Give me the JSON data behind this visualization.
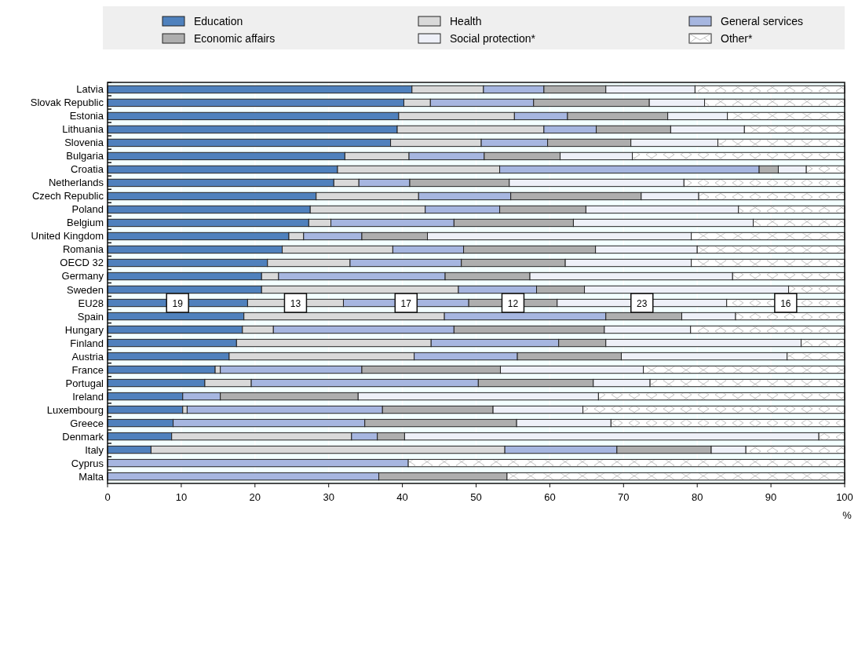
{
  "chart_data": {
    "type": "bar",
    "orientation": "horizontal",
    "stacked": true,
    "xlabel": "%",
    "legend": "top",
    "grid": "x",
    "categories": [
      "Latvia",
      "Slovak Republic",
      "Estonia",
      "Lithuania",
      "Slovenia",
      "Bulgaria",
      "Croatia",
      "Netherlands",
      "Czech Republic",
      "Poland",
      "Belgium",
      "United Kingdom",
      "Romania",
      "OECD 32",
      "Germany",
      "Sweden",
      "EU28",
      "Spain",
      "Hungary",
      "Finland",
      "Austria",
      "France",
      "Portugal",
      "Ireland",
      "Luxembourg",
      "Greece",
      "Denmark",
      "Italy",
      "Cyprus",
      "Malta"
    ],
    "xlim": [
      0,
      100
    ],
    "xticks": [
      0,
      10,
      20,
      30,
      40,
      50,
      60,
      70,
      80,
      90,
      100
    ],
    "series": [
      {
        "name": "Education",
        "color": "#4f81bd",
        "values": [
          41.3,
          40.2,
          39.5,
          39.3,
          38.4,
          32.2,
          31.2,
          30.7,
          28.3,
          27.5,
          27.3,
          24.6,
          23.7,
          21.7,
          20.9,
          20.9,
          19,
          18.5,
          18.3,
          17.5,
          16.5,
          14.6,
          13.2,
          10.2,
          10.2,
          8.9,
          8.7,
          5.9,
          0,
          0
        ],
        "value_labels": [
          null,
          null,
          null,
          null,
          null,
          null,
          null,
          null,
          null,
          null,
          null,
          null,
          null,
          null,
          null,
          null,
          "19",
          null,
          null,
          null,
          null,
          null,
          null,
          null,
          null,
          null,
          null,
          null,
          null,
          null
        ]
      },
      {
        "name": "Health",
        "color": "#d9d9d9",
        "values": [
          9.7,
          3.6,
          15.7,
          19.9,
          12.3,
          8.7,
          22.0,
          3.4,
          13.9,
          15.6,
          3.0,
          2.0,
          15.0,
          11.2,
          2.3,
          26.7,
          13,
          27.2,
          4.2,
          26.4,
          25.1,
          0.7,
          6.3,
          0,
          0.6,
          0,
          24.4,
          48.0,
          0,
          0
        ],
        "value_labels": [
          null,
          null,
          null,
          null,
          null,
          null,
          null,
          null,
          null,
          null,
          null,
          null,
          null,
          null,
          null,
          null,
          "13",
          null,
          null,
          null,
          null,
          null,
          null,
          null,
          null,
          null,
          null,
          null,
          null,
          null
        ]
      },
      {
        "name": "General services",
        "color": "#a6b6e0",
        "values": [
          8.2,
          14.0,
          7.2,
          7.1,
          9.0,
          10.2,
          35.2,
          6.9,
          12.5,
          10.1,
          16.7,
          7.9,
          9.6,
          15.1,
          22.6,
          10.6,
          17,
          21.9,
          24.5,
          17.3,
          14.0,
          19.2,
          30.8,
          5.1,
          26.5,
          26.0,
          3.5,
          15.2,
          40.8,
          36.8
        ],
        "value_labels": [
          null,
          null,
          null,
          null,
          null,
          null,
          null,
          null,
          null,
          null,
          null,
          null,
          null,
          null,
          null,
          null,
          "17",
          null,
          null,
          null,
          null,
          null,
          null,
          null,
          null,
          null,
          null,
          null,
          null,
          null
        ]
      },
      {
        "name": "Economic affairs",
        "color": "#aeaeae",
        "values": [
          8.4,
          15.7,
          13.6,
          10.1,
          11.3,
          10.3,
          2.6,
          13.5,
          17.7,
          11.7,
          16.2,
          8.9,
          17.9,
          14.1,
          11.5,
          6.5,
          12,
          10.3,
          20.4,
          6.4,
          14.1,
          18.8,
          15.6,
          18.7,
          15.0,
          20.6,
          3.7,
          12.8,
          0,
          17.4
        ],
        "value_labels": [
          null,
          null,
          null,
          null,
          null,
          null,
          null,
          null,
          null,
          null,
          null,
          null,
          null,
          null,
          null,
          null,
          "12",
          null,
          null,
          null,
          null,
          null,
          null,
          null,
          null,
          null,
          null,
          null,
          null,
          null
        ]
      },
      {
        "name": "Social protection*",
        "color": "#eef0f8",
        "values": [
          12.1,
          7.5,
          8.1,
          10.0,
          11.8,
          9.8,
          3.8,
          23.7,
          7.8,
          20.7,
          24.4,
          35.8,
          13.8,
          17.1,
          27.5,
          27.7,
          23,
          7.3,
          11.7,
          26.5,
          22.5,
          19.4,
          7.7,
          32.6,
          12.2,
          12.8,
          56.2,
          4.7,
          0,
          0
        ],
        "value_labels": [
          null,
          null,
          null,
          null,
          null,
          null,
          null,
          null,
          null,
          null,
          null,
          null,
          null,
          null,
          null,
          null,
          "23",
          null,
          null,
          null,
          null,
          null,
          null,
          null,
          null,
          null,
          null,
          null,
          null,
          null
        ]
      },
      {
        "name": "Other*",
        "color": "#ffffff",
        "values": [
          20.3,
          19.0,
          15.9,
          13.6,
          17.2,
          28.8,
          5.2,
          21.8,
          19.8,
          14.4,
          12.4,
          20.8,
          20.0,
          20.8,
          15.2,
          7.6,
          16,
          14.8,
          20.9,
          5.9,
          7.8,
          27.3,
          26.4,
          33.4,
          35.5,
          31.7,
          3.5,
          13.4,
          59.2,
          45.8
        ],
        "value_labels": [
          null,
          null,
          null,
          null,
          null,
          null,
          null,
          null,
          null,
          null,
          null,
          null,
          null,
          null,
          null,
          null,
          "16",
          null,
          null,
          null,
          null,
          null,
          null,
          null,
          null,
          null,
          null,
          null,
          null,
          null
        ]
      }
    ]
  }
}
